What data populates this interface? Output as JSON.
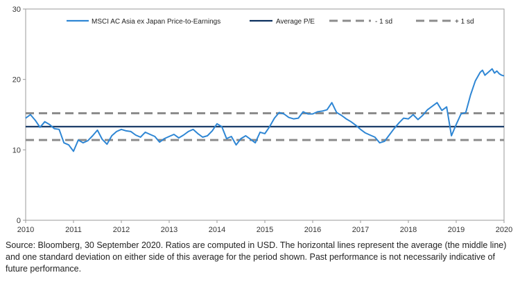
{
  "chart_data": {
    "type": "line",
    "title": "",
    "xlabel": "",
    "ylabel": "",
    "xlim": [
      2010,
      2020
    ],
    "ylim": [
      0,
      30
    ],
    "x_ticks": [
      "2010",
      "2011",
      "2012",
      "2013",
      "2014",
      "2015",
      "2016",
      "2017",
      "2018",
      "2019",
      "2020"
    ],
    "y_ticks": [
      "0",
      "10",
      "20",
      "30"
    ],
    "grid": false,
    "legend_position": "top",
    "legend": [
      {
        "label": "MSCI AC Asia ex Japan Price-to-Earnings",
        "style": "solid",
        "color": "#2e86d4"
      },
      {
        "label": "Average P/E",
        "style": "solid",
        "color": "#0b2f5e"
      },
      {
        "label": "- 1 sd",
        "style": "dashed",
        "color": "#8c8c8c"
      },
      {
        "label": "+ 1 sd",
        "style": "dashed",
        "color": "#8c8c8c"
      }
    ],
    "series": [
      {
        "name": "MSCI AC Asia ex Japan Price-to-Earnings",
        "color": "#2e86d4",
        "x": [
          2010.0,
          2010.1,
          2010.2,
          2010.3,
          2010.4,
          2010.5,
          2010.6,
          2010.7,
          2010.8,
          2010.9,
          2011.0,
          2011.1,
          2011.2,
          2011.3,
          2011.4,
          2011.5,
          2011.6,
          2011.7,
          2011.8,
          2011.9,
          2012.0,
          2012.1,
          2012.2,
          2012.3,
          2012.4,
          2012.5,
          2012.6,
          2012.7,
          2012.8,
          2012.9,
          2013.0,
          2013.1,
          2013.2,
          2013.3,
          2013.4,
          2013.5,
          2013.6,
          2013.7,
          2013.8,
          2013.9,
          2014.0,
          2014.1,
          2014.2,
          2014.3,
          2014.4,
          2014.5,
          2014.6,
          2014.7,
          2014.8,
          2014.9,
          2015.0,
          2015.1,
          2015.2,
          2015.3,
          2015.4,
          2015.5,
          2015.6,
          2015.7,
          2015.8,
          2015.9,
          2016.0,
          2016.1,
          2016.2,
          2016.3,
          2016.4,
          2016.5,
          2016.6,
          2016.7,
          2016.8,
          2016.9,
          2017.0,
          2017.1,
          2017.2,
          2017.3,
          2017.4,
          2017.5,
          2017.6,
          2017.7,
          2017.8,
          2017.9,
          2018.0,
          2018.1,
          2018.2,
          2018.3,
          2018.4,
          2018.5,
          2018.6,
          2018.7,
          2018.8,
          2018.9,
          2019.0,
          2019.1,
          2019.2,
          2019.3,
          2019.4,
          2019.5,
          2019.55,
          2019.6,
          2019.7,
          2019.75,
          2019.8,
          2019.85,
          2019.9,
          2019.95,
          2020.0
        ],
        "values": [
          14.5,
          15.0,
          14.2,
          13.2,
          14.0,
          13.6,
          13.0,
          12.9,
          11.0,
          10.7,
          9.8,
          11.4,
          11.0,
          11.3,
          12.0,
          12.8,
          11.5,
          10.8,
          12.0,
          12.6,
          12.9,
          12.7,
          12.6,
          12.1,
          11.8,
          12.5,
          12.2,
          11.9,
          11.1,
          11.6,
          11.9,
          12.2,
          11.7,
          12.1,
          12.6,
          12.9,
          12.3,
          11.8,
          12.0,
          12.7,
          13.7,
          13.3,
          11.6,
          11.9,
          10.7,
          11.6,
          12.0,
          11.5,
          11.0,
          12.5,
          12.3,
          13.3,
          14.5,
          15.3,
          15.1,
          14.6,
          14.4,
          14.5,
          15.4,
          15.1,
          15.1,
          15.4,
          15.5,
          15.7,
          16.7,
          15.3,
          14.9,
          14.4,
          14.0,
          13.5,
          12.9,
          12.4,
          12.1,
          11.8,
          11.0,
          11.2,
          12.1,
          13.0,
          13.8,
          14.5,
          14.4,
          15.0,
          14.3,
          14.9,
          15.7,
          16.2,
          16.7,
          15.6,
          16.1,
          12.0,
          13.6,
          15.1,
          15.3,
          17.8,
          19.8,
          21.0,
          21.3,
          20.6,
          21.2,
          21.5,
          20.9,
          21.2,
          20.8,
          20.6,
          20.5
        ]
      },
      {
        "name": "Average P/E",
        "color": "#0b2f5e",
        "x": [
          2010,
          2020
        ],
        "values": [
          13.3,
          13.3
        ]
      },
      {
        "name": "- 1 sd",
        "color": "#8c8c8c",
        "x": [
          2010,
          2020
        ],
        "values": [
          11.4,
          11.4
        ]
      },
      {
        "name": "+ 1 sd",
        "color": "#8c8c8c",
        "x": [
          2010,
          2020
        ],
        "values": [
          15.2,
          15.2
        ]
      }
    ]
  },
  "footnote": "Source: Bloomberg, 30 September 2020. Ratios are computed in USD. The horizontal lines represent the average (the middle line) and one standard deviation on either side of this average for the period shown. Past performance is not necessarily indicative of future performance."
}
